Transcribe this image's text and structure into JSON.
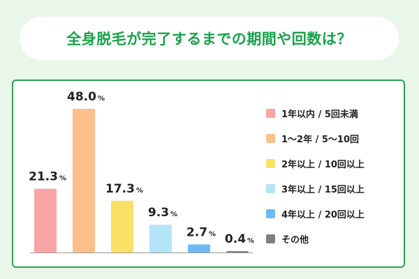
{
  "title": "全身脱毛が完了するまでの期間や回数は？",
  "colors": {
    "background": "#e9f6ea",
    "title": "#18a24a",
    "card_border": "#2aa14f"
  },
  "chart_data": {
    "type": "bar",
    "categories": [
      "1年以内 / 5回未満",
      "1〜2年 / 5〜10回",
      "2年以上 / 10回以上",
      "3年以上 / 15回以上",
      "4年以上 / 20回以上",
      "その他"
    ],
    "values": [
      21.3,
      48.0,
      17.3,
      9.3,
      2.7,
      0.4
    ],
    "value_labels": [
      "21.3",
      "48.0",
      "17.3",
      "9.3",
      "2.7",
      "0.4"
    ],
    "unit": "%",
    "colors": [
      "#f8a3a4",
      "#fbc08b",
      "#fbe067",
      "#b4e4f8",
      "#6fb9f5",
      "#808080"
    ],
    "ylim": [
      0,
      48
    ],
    "legend_position": "right",
    "grid": false
  }
}
